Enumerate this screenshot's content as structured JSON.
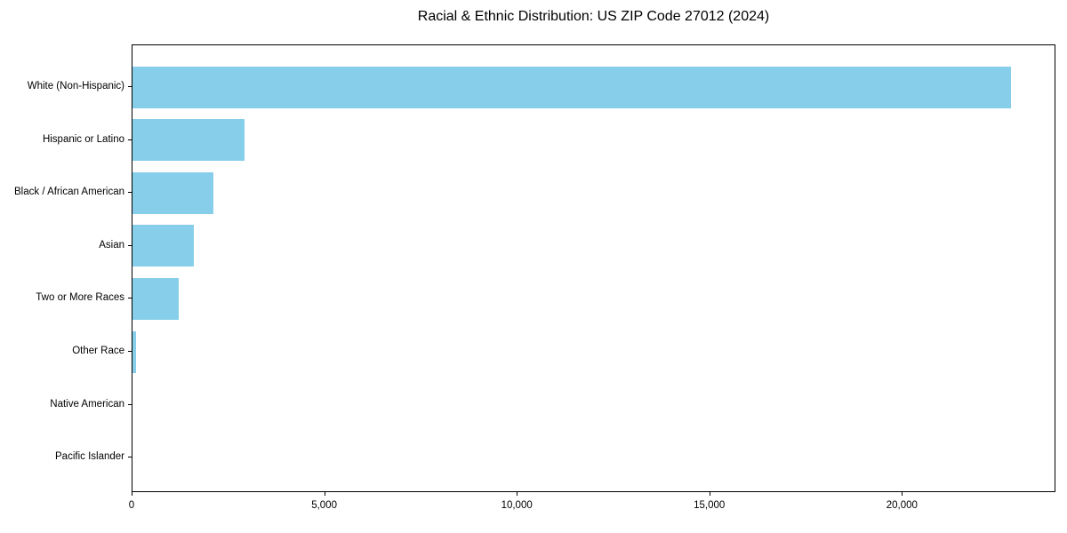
{
  "figure": {
    "background_color": "#FFFFFF",
    "axis_color": "#000000",
    "text_color": "#000000"
  },
  "chart_data": {
    "type": "bar",
    "orientation": "horizontal",
    "title": "Racial & Ethnic Distribution: US ZIP Code 27012 (2024)",
    "xlabel": "",
    "ylabel": "",
    "categories": [
      "White (Non-Hispanic)",
      "Hispanic or Latino",
      "Black / African American",
      "Asian",
      "Two or More Races",
      "Other Race",
      "Native American",
      "Pacific Islander"
    ],
    "values": [
      22800,
      2900,
      2100,
      1600,
      1200,
      100,
      0,
      0
    ],
    "bar_color": "#87CEEB",
    "xlim": [
      0,
      23940
    ],
    "xticks": [
      0,
      5000,
      10000,
      15000,
      20000
    ],
    "xtick_labels": [
      "0",
      "5,000",
      "10,000",
      "15,000",
      "20,000"
    ],
    "grid": false,
    "legend": null
  }
}
